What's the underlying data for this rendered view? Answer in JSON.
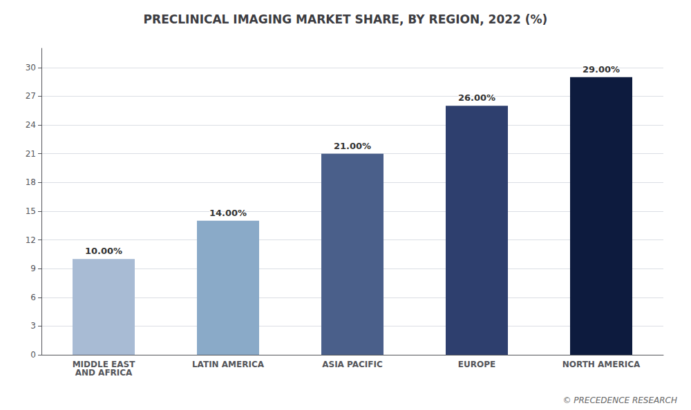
{
  "chart_data": {
    "type": "bar",
    "title": "PRECLINICAL IMAGING MARKET SHARE, BY REGION, 2022 (%)",
    "categories": [
      "MIDDLE EAST\nAND AFRICA",
      "LATIN AMERICA",
      "ASIA PACIFIC",
      "EUROPE",
      "NORTH AMERICA"
    ],
    "values": [
      10.0,
      14.0,
      21.0,
      26.0,
      29.0
    ],
    "value_labels": [
      "10.00%",
      "14.00%",
      "21.00%",
      "26.00%",
      "29.00%"
    ],
    "colors": [
      "#a8bbd4",
      "#8aaac8",
      "#4a5f8a",
      "#2e3f6e",
      "#0d1b3e"
    ],
    "ylim": [
      0,
      32
    ],
    "yticks": [
      0,
      3,
      6,
      9,
      12,
      15,
      18,
      21,
      24,
      27,
      30
    ],
    "grid": true,
    "data_labels": true,
    "annotations": [
      "© PRECEDENCE RESEARCH"
    ]
  }
}
